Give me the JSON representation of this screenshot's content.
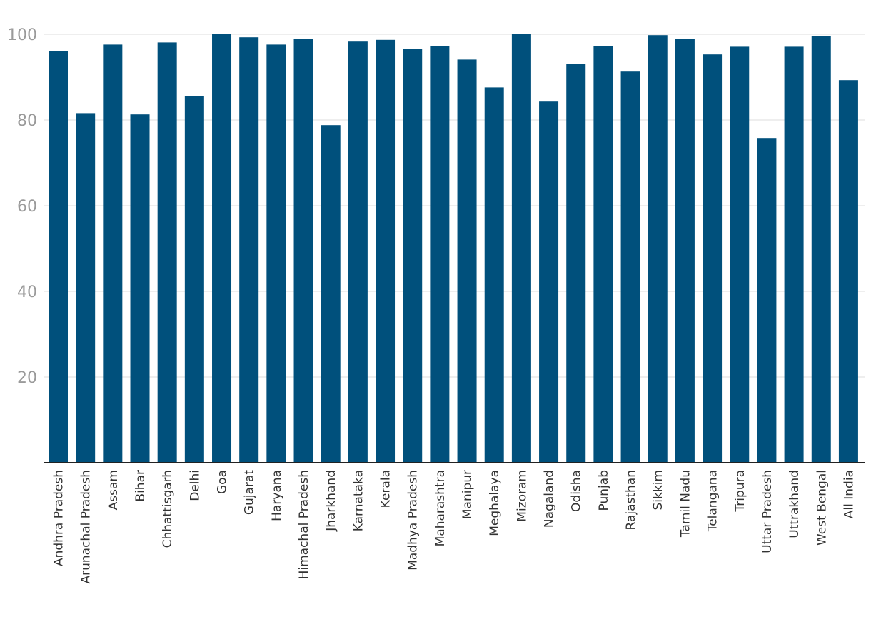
{
  "chart_data": {
    "type": "bar",
    "categories": [
      "Andhra Pradesh",
      "Arunachal Pradesh",
      "Assam",
      "Bihar",
      "Chhattisgarh",
      "Delhi",
      "Goa",
      "Gujarat",
      "Haryana",
      "Himachal Pradesh",
      "Jharkhand",
      "Karnataka",
      "Kerala",
      "Madhya Pradesh",
      "Maharashtra",
      "Manipur",
      "Meghalaya",
      "Mizoram",
      "Nagaland",
      "Odisha",
      "Punjab",
      "Rajasthan",
      "Sikkim",
      "Tamil Nadu",
      "Telangana",
      "Tripura",
      "Uttar Pradesh",
      "Uttrakhand",
      "West Bengal",
      "All India"
    ],
    "values": [
      96.0,
      81.6,
      97.6,
      81.3,
      98.1,
      85.6,
      100.0,
      99.3,
      97.6,
      99.0,
      78.8,
      98.3,
      98.7,
      96.6,
      97.3,
      94.1,
      87.6,
      100.0,
      84.3,
      93.1,
      97.3,
      91.3,
      99.8,
      99.0,
      95.3,
      97.1,
      75.8,
      97.1,
      99.5,
      89.3
    ],
    "ylim": [
      0,
      100
    ],
    "yticks": [
      20,
      40,
      60,
      80,
      100
    ],
    "grid": true,
    "bar_color": "#00507c",
    "legend": "none"
  }
}
